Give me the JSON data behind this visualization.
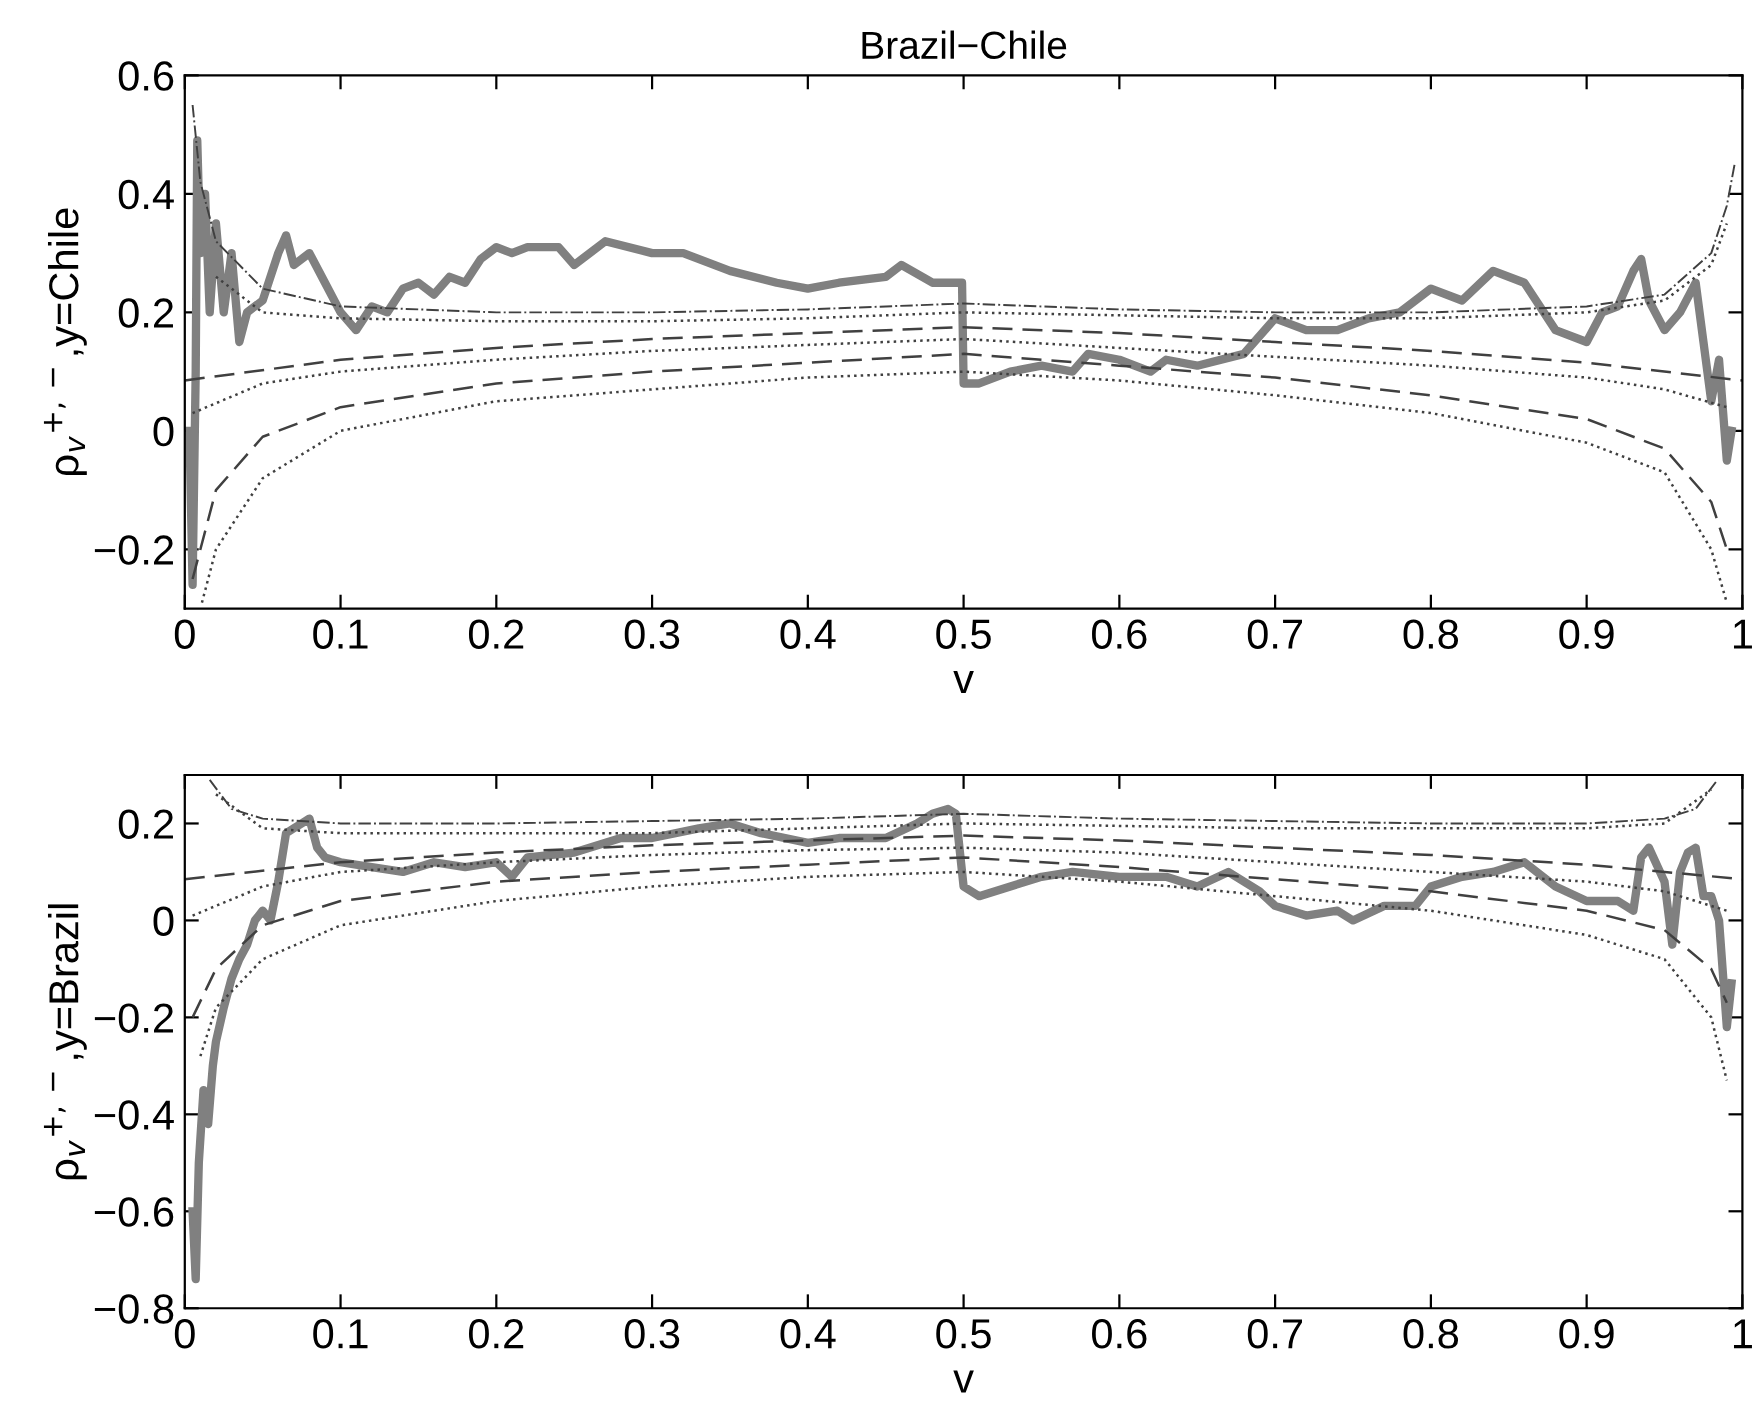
{
  "chart_data": [
    {
      "type": "line",
      "title": "Brazil−Chile",
      "xlabel": "v",
      "ylabel": "ρ$_{v}$$^{+,−}$,y=Chile",
      "xlim": [
        0,
        1
      ],
      "xticks": [
        0,
        0.1,
        0.2,
        0.3,
        0.4,
        0.5,
        0.6,
        0.7,
        0.8,
        0.9,
        1
      ],
      "ylim": [
        -0.3,
        0.6
      ],
      "yticks": [
        -0.2,
        0,
        0.2,
        0.4,
        0.6
      ],
      "series": [
        {
          "color": "#808080",
          "line_style": "solid",
          "x": [
            0.003,
            0.005,
            0.007,
            0.008,
            0.01,
            0.013,
            0.016,
            0.02,
            0.025,
            0.03,
            0.035,
            0.04,
            0.05,
            0.06,
            0.065,
            0.07,
            0.08,
            0.09,
            0.1,
            0.11,
            0.12,
            0.13,
            0.14,
            0.15,
            0.16,
            0.17,
            0.18,
            0.19,
            0.2,
            0.21,
            0.22,
            0.24,
            0.25,
            0.27,
            0.3,
            0.32,
            0.35,
            0.38,
            0.4,
            0.42,
            0.45,
            0.46,
            0.48,
            0.499,
            0.5,
            0.51,
            0.53,
            0.55,
            0.57,
            0.58,
            0.6,
            0.62,
            0.63,
            0.65,
            0.68,
            0.7,
            0.72,
            0.74,
            0.76,
            0.78,
            0.8,
            0.82,
            0.84,
            0.86,
            0.88,
            0.9,
            0.91,
            0.92,
            0.93,
            0.935,
            0.94,
            0.95,
            0.96,
            0.97,
            0.975,
            0.98,
            0.985,
            0.99,
            0.993
          ],
          "values": [
            0.0,
            -0.26,
            0.1,
            0.49,
            0.3,
            0.4,
            0.2,
            0.35,
            0.2,
            0.3,
            0.15,
            0.2,
            0.22,
            0.3,
            0.33,
            0.28,
            0.3,
            0.25,
            0.2,
            0.17,
            0.21,
            0.2,
            0.24,
            0.25,
            0.23,
            0.26,
            0.25,
            0.29,
            0.31,
            0.3,
            0.31,
            0.31,
            0.28,
            0.32,
            0.3,
            0.3,
            0.27,
            0.25,
            0.24,
            0.25,
            0.26,
            0.28,
            0.25,
            0.25,
            0.08,
            0.08,
            0.1,
            0.11,
            0.1,
            0.13,
            0.12,
            0.1,
            0.12,
            0.11,
            0.13,
            0.19,
            0.17,
            0.17,
            0.19,
            0.2,
            0.24,
            0.22,
            0.27,
            0.25,
            0.17,
            0.15,
            0.2,
            0.21,
            0.27,
            0.29,
            0.22,
            0.17,
            0.2,
            0.25,
            0.15,
            0.05,
            0.12,
            -0.05,
            0.0
          ]
        },
        {
          "color": "#404040",
          "line_style": "dashdot",
          "x": [
            0.005,
            0.01,
            0.02,
            0.05,
            0.1,
            0.2,
            0.3,
            0.4,
            0.5,
            0.6,
            0.7,
            0.8,
            0.9,
            0.95,
            0.98,
            0.99,
            0.995
          ],
          "values": [
            0.55,
            0.42,
            0.32,
            0.24,
            0.21,
            0.2,
            0.2,
            0.205,
            0.215,
            0.205,
            0.2,
            0.2,
            0.21,
            0.23,
            0.3,
            0.38,
            0.45
          ]
        },
        {
          "color": "#404040",
          "line_style": "dotted",
          "x": [
            0.02,
            0.05,
            0.1,
            0.2,
            0.3,
            0.4,
            0.5,
            0.6,
            0.7,
            0.8,
            0.9,
            0.95,
            0.98,
            0.99
          ],
          "values": [
            0.26,
            0.2,
            0.19,
            0.185,
            0.185,
            0.19,
            0.2,
            0.195,
            0.19,
            0.19,
            0.2,
            0.22,
            0.28,
            0.35
          ]
        },
        {
          "color": "#404040",
          "line_style": "dashed",
          "x": [
            0,
            0.1,
            0.2,
            0.3,
            0.4,
            0.5,
            0.6,
            0.7,
            0.8,
            0.9,
            1
          ],
          "values": [
            0.085,
            0.12,
            0.14,
            0.155,
            0.165,
            0.175,
            0.165,
            0.15,
            0.135,
            0.115,
            0.085
          ]
        },
        {
          "color": "#404040",
          "line_style": "dotted",
          "x": [
            0.005,
            0.05,
            0.1,
            0.2,
            0.3,
            0.4,
            0.5,
            0.6,
            0.7,
            0.8,
            0.9,
            0.95,
            0.99
          ],
          "values": [
            0.03,
            0.08,
            0.1,
            0.12,
            0.135,
            0.145,
            0.155,
            0.14,
            0.125,
            0.11,
            0.09,
            0.07,
            0.04
          ]
        },
        {
          "color": "#404040",
          "line_style": "dashed",
          "x": [
            0.005,
            0.02,
            0.05,
            0.1,
            0.2,
            0.3,
            0.4,
            0.5,
            0.6,
            0.7,
            0.8,
            0.9,
            0.95,
            0.98,
            0.99
          ],
          "values": [
            -0.25,
            -0.1,
            -0.01,
            0.04,
            0.08,
            0.1,
            0.115,
            0.13,
            0.11,
            0.09,
            0.06,
            0.02,
            -0.03,
            -0.12,
            -0.2
          ]
        },
        {
          "color": "#404040",
          "line_style": "dotted",
          "x": [
            0.011,
            0.02,
            0.05,
            0.1,
            0.2,
            0.3,
            0.4,
            0.5,
            0.6,
            0.7,
            0.8,
            0.9,
            0.95,
            0.98,
            0.99
          ],
          "values": [
            -0.29,
            -0.2,
            -0.08,
            0.0,
            0.05,
            0.07,
            0.09,
            0.1,
            0.085,
            0.06,
            0.03,
            -0.02,
            -0.07,
            -0.2,
            -0.29
          ]
        }
      ]
    },
    {
      "type": "line",
      "xlabel": "v",
      "ylabel": "ρ$_{v}$$^{+,−}$,y=Brazil",
      "xlim": [
        0,
        1
      ],
      "xticks": [
        0,
        0.1,
        0.2,
        0.3,
        0.4,
        0.5,
        0.6,
        0.7,
        0.8,
        0.9,
        1
      ],
      "ylim": [
        -0.8,
        0.3
      ],
      "yticks": [
        -0.8,
        -0.6,
        -0.4,
        -0.2,
        0,
        0.2
      ],
      "series": [
        {
          "color": "#808080",
          "line_style": "solid",
          "x": [
            0.005,
            0.007,
            0.009,
            0.012,
            0.015,
            0.018,
            0.02,
            0.025,
            0.03,
            0.035,
            0.04,
            0.045,
            0.05,
            0.055,
            0.06,
            0.065,
            0.07,
            0.075,
            0.08,
            0.085,
            0.09,
            0.1,
            0.12,
            0.14,
            0.16,
            0.18,
            0.2,
            0.21,
            0.22,
            0.25,
            0.28,
            0.3,
            0.33,
            0.35,
            0.37,
            0.4,
            0.42,
            0.45,
            0.47,
            0.48,
            0.49,
            0.495,
            0.5,
            0.51,
            0.53,
            0.55,
            0.57,
            0.6,
            0.63,
            0.65,
            0.67,
            0.69,
            0.7,
            0.72,
            0.74,
            0.75,
            0.77,
            0.79,
            0.8,
            0.82,
            0.84,
            0.86,
            0.88,
            0.9,
            0.92,
            0.93,
            0.935,
            0.94,
            0.95,
            0.955,
            0.96,
            0.965,
            0.97,
            0.975,
            0.98,
            0.985,
            0.99,
            0.993
          ],
          "values": [
            -0.6,
            -0.74,
            -0.5,
            -0.35,
            -0.42,
            -0.3,
            -0.25,
            -0.18,
            -0.12,
            -0.08,
            -0.05,
            0.0,
            0.02,
            0.0,
            0.08,
            0.18,
            0.19,
            0.2,
            0.21,
            0.15,
            0.13,
            0.12,
            0.11,
            0.1,
            0.12,
            0.11,
            0.12,
            0.09,
            0.13,
            0.14,
            0.17,
            0.17,
            0.19,
            0.2,
            0.18,
            0.16,
            0.17,
            0.17,
            0.2,
            0.22,
            0.23,
            0.22,
            0.07,
            0.05,
            0.07,
            0.09,
            0.1,
            0.09,
            0.09,
            0.07,
            0.1,
            0.06,
            0.03,
            0.01,
            0.02,
            0.0,
            0.03,
            0.03,
            0.07,
            0.09,
            0.1,
            0.12,
            0.07,
            0.04,
            0.04,
            0.02,
            0.13,
            0.15,
            0.08,
            -0.05,
            0.1,
            0.14,
            0.15,
            0.05,
            0.05,
            0.0,
            -0.22,
            -0.13
          ]
        },
        {
          "color": "#404040",
          "line_style": "dashdot",
          "x": [
            0.016,
            0.03,
            0.05,
            0.1,
            0.2,
            0.3,
            0.4,
            0.5,
            0.6,
            0.7,
            0.8,
            0.9,
            0.95,
            0.97,
            0.984
          ],
          "values": [
            0.29,
            0.23,
            0.21,
            0.2,
            0.2,
            0.205,
            0.21,
            0.22,
            0.21,
            0.205,
            0.2,
            0.2,
            0.21,
            0.23,
            0.29
          ]
        },
        {
          "color": "#404040",
          "line_style": "dotted",
          "x": [
            0.02,
            0.05,
            0.1,
            0.3,
            0.5,
            0.7,
            0.9,
            0.95,
            0.98
          ],
          "values": [
            0.26,
            0.19,
            0.18,
            0.18,
            0.2,
            0.19,
            0.19,
            0.2,
            0.27
          ]
        },
        {
          "color": "#404040",
          "line_style": "dashed",
          "x": [
            0,
            0.1,
            0.2,
            0.3,
            0.4,
            0.5,
            0.6,
            0.7,
            0.8,
            0.9,
            1
          ],
          "values": [
            0.085,
            0.12,
            0.14,
            0.155,
            0.165,
            0.175,
            0.165,
            0.15,
            0.135,
            0.115,
            0.085
          ]
        },
        {
          "color": "#404040",
          "line_style": "dotted",
          "x": [
            0.005,
            0.05,
            0.1,
            0.2,
            0.3,
            0.4,
            0.5,
            0.6,
            0.7,
            0.8,
            0.9,
            0.95,
            0.99
          ],
          "values": [
            0.01,
            0.07,
            0.1,
            0.12,
            0.135,
            0.145,
            0.15,
            0.14,
            0.12,
            0.1,
            0.08,
            0.06,
            0.02
          ]
        },
        {
          "color": "#404040",
          "line_style": "dashed",
          "x": [
            0.005,
            0.02,
            0.05,
            0.1,
            0.2,
            0.3,
            0.4,
            0.5,
            0.6,
            0.7,
            0.8,
            0.9,
            0.95,
            0.98,
            0.99
          ],
          "values": [
            -0.2,
            -0.1,
            -0.01,
            0.04,
            0.08,
            0.1,
            0.115,
            0.13,
            0.11,
            0.085,
            0.06,
            0.02,
            -0.02,
            -0.1,
            -0.17
          ]
        },
        {
          "color": "#404040",
          "line_style": "dotted",
          "x": [
            0.01,
            0.02,
            0.05,
            0.1,
            0.2,
            0.3,
            0.4,
            0.5,
            0.6,
            0.7,
            0.8,
            0.9,
            0.95,
            0.98,
            0.99
          ],
          "values": [
            -0.28,
            -0.18,
            -0.08,
            -0.01,
            0.04,
            0.07,
            0.09,
            0.1,
            0.08,
            0.05,
            0.02,
            -0.03,
            -0.08,
            -0.2,
            -0.33
          ]
        }
      ]
    }
  ]
}
